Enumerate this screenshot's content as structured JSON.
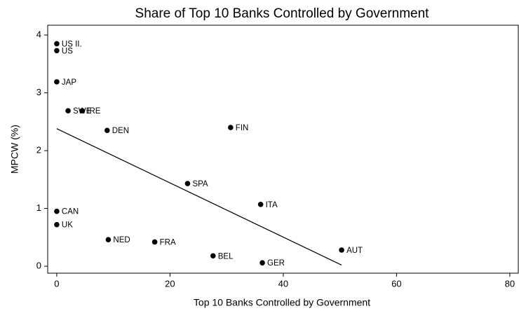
{
  "chart_data": {
    "type": "scatter",
    "title": "Share of Top 10 Banks Controlled by Government",
    "x_label": "Top 10 Banks Controlled by Government",
    "y_label": "MPCW (%)",
    "labels": [
      "US II.",
      "US",
      "JAP",
      "SWE",
      "IRE",
      "DEN",
      "FIN",
      "SPA",
      "ITA",
      "CAN",
      "UK",
      "NED",
      "FRA",
      "BEL",
      "GER",
      "AUT"
    ],
    "x": [
      0,
      0,
      0,
      2,
      4.5,
      8.9,
      30.7,
      23.1,
      36,
      0,
      0,
      9.1,
      17.3,
      27.6,
      36.3,
      50.3
    ],
    "values": [
      3.85,
      3.73,
      3.19,
      2.69,
      2.69,
      2.35,
      2.4,
      1.43,
      1.07,
      0.95,
      0.72,
      0.46,
      0.42,
      0.18,
      0.06,
      0.28
    ],
    "color": "#000000",
    "fit_line": {
      "x": [
        0,
        50.3
      ],
      "y": [
        2.38,
        0.02
      ]
    },
    "xlim": [
      -1.6,
      81.5
    ],
    "xticks": [
      0,
      20,
      40,
      60,
      80
    ],
    "ylim": [
      -0.12,
      4.17
    ],
    "yticks": [
      0,
      1,
      2,
      3,
      4
    ]
  }
}
